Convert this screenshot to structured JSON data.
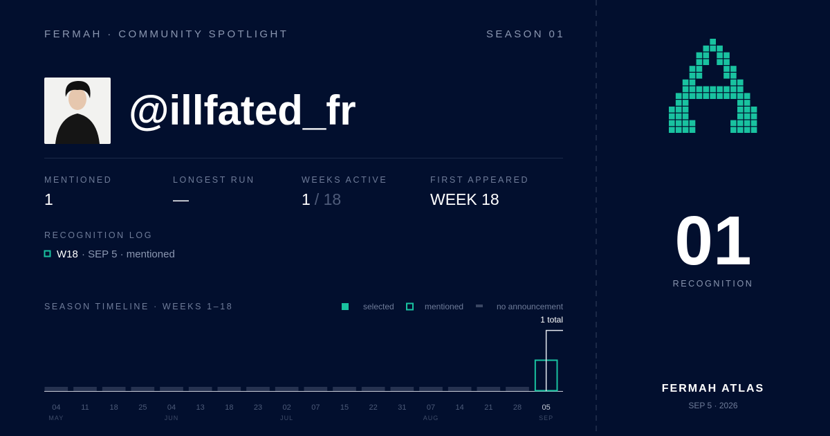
{
  "header": {
    "brand": "FERMAH · COMMUNITY SPOTLIGHT",
    "season": "SEASON 01"
  },
  "profile": {
    "handle": "@illfated_fr"
  },
  "stats": [
    {
      "label": "MENTIONED",
      "value": "1"
    },
    {
      "label": "LONGEST RUN",
      "value": "—"
    },
    {
      "label": "WEEKS ACTIVE",
      "value": "1",
      "total": "/ 18"
    },
    {
      "label": "FIRST APPEARED",
      "value": "WEEK 18"
    }
  ],
  "log": {
    "title": "RECOGNITION LOG",
    "entries": [
      {
        "week": "W18",
        "detail": "· SEP 5 · mentioned"
      }
    ]
  },
  "timeline": {
    "title": "SEASON TIMELINE · WEEKS 1–18",
    "legend": [
      "selected",
      "mentioned",
      "no announcement"
    ],
    "total_label": "1 total",
    "weeks": [
      {
        "day": "04",
        "month": "MAY",
        "status": "none"
      },
      {
        "day": "11",
        "status": "none"
      },
      {
        "day": "18",
        "status": "none"
      },
      {
        "day": "25",
        "status": "none"
      },
      {
        "day": "04",
        "month": "JUN",
        "status": "none"
      },
      {
        "day": "13",
        "status": "none"
      },
      {
        "day": "18",
        "status": "none"
      },
      {
        "day": "23",
        "status": "none"
      },
      {
        "day": "02",
        "month": "JUL",
        "status": "none"
      },
      {
        "day": "07",
        "status": "none"
      },
      {
        "day": "15",
        "status": "none"
      },
      {
        "day": "22",
        "status": "none"
      },
      {
        "day": "31",
        "status": "none"
      },
      {
        "day": "07",
        "month": "AUG",
        "status": "none"
      },
      {
        "day": "14",
        "status": "none"
      },
      {
        "day": "21",
        "status": "none"
      },
      {
        "day": "28",
        "status": "none"
      },
      {
        "day": "05",
        "month": "SEP",
        "status": "mentioned"
      }
    ]
  },
  "side": {
    "count": "01",
    "count_label": "RECOGNITION",
    "brand": "FERMAH ATLAS",
    "date": "SEP 5 · 2026"
  }
}
